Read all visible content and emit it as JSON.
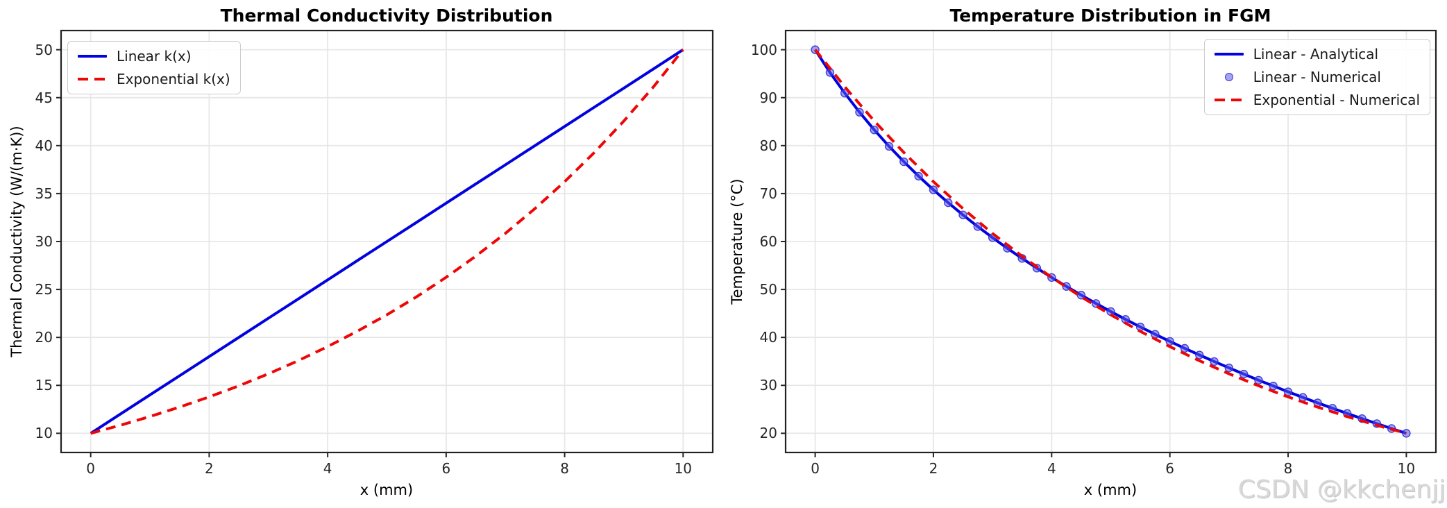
{
  "figure": {
    "background": "#ffffff"
  },
  "watermark": {
    "text": "CSDN @kkchenjj",
    "color": "#d8d8d8"
  },
  "colors": {
    "blue_line": "#0202e0",
    "red_line": "#ee0606",
    "marker_fill": "rgba(90,90,235,0.55)",
    "marker_edge": "rgba(40,40,210,0.85)",
    "grid": "#e7e7e7",
    "frame": "#222222",
    "tick": "#262626"
  },
  "chart_data": [
    {
      "type": "line",
      "title": "Thermal Conductivity Distribution",
      "xlabel": "x (mm)",
      "ylabel": "Thermal Conductivity (W/(m·K))",
      "xlim": [
        -0.5,
        10.5
      ],
      "ylim": [
        8,
        52
      ],
      "xticks": [
        0,
        2,
        4,
        6,
        8,
        10
      ],
      "yticks": [
        10,
        15,
        20,
        25,
        30,
        35,
        40,
        45,
        50
      ],
      "grid": true,
      "legend_position": "upper-left",
      "series": [
        {
          "name": "Linear k(x)",
          "style": "solid",
          "color": "#0202e0",
          "x": [
            0,
            0.5,
            1,
            1.5,
            2,
            2.5,
            3,
            3.5,
            4,
            4.5,
            5,
            5.5,
            6,
            6.5,
            7,
            7.5,
            8,
            8.5,
            9,
            9.5,
            10
          ],
          "y": [
            10,
            12,
            14,
            16,
            18,
            20,
            22,
            24,
            26,
            28,
            30,
            32,
            34,
            36,
            38,
            40,
            42,
            44,
            46,
            48,
            50
          ]
        },
        {
          "name": "Exponential k(x)",
          "style": "dashed",
          "color": "#ee0606",
          "x": [
            0,
            0.5,
            1,
            1.5,
            2,
            2.5,
            3,
            3.5,
            4,
            4.5,
            5,
            5.5,
            6,
            6.5,
            7,
            7.5,
            8,
            8.5,
            9,
            9.5,
            10
          ],
          "y": [
            10.0,
            10.84,
            11.75,
            12.73,
            13.8,
            14.95,
            16.21,
            17.57,
            19.04,
            20.64,
            22.36,
            24.23,
            26.27,
            28.47,
            30.85,
            33.44,
            36.24,
            39.28,
            42.57,
            46.13,
            50.0
          ]
        }
      ]
    },
    {
      "type": "line",
      "title": "Temperature Distribution in FGM",
      "xlabel": "x (mm)",
      "ylabel": "Temperature (°C)",
      "xlim": [
        -0.5,
        10.5
      ],
      "ylim": [
        16,
        104
      ],
      "xticks": [
        0,
        2,
        4,
        6,
        8,
        10
      ],
      "yticks": [
        20,
        30,
        40,
        50,
        60,
        70,
        80,
        90,
        100
      ],
      "grid": true,
      "legend_position": "upper-right",
      "series": [
        {
          "name": "Linear - Analytical",
          "style": "solid",
          "color": "#0202e0",
          "x": [
            0,
            0.25,
            0.5,
            0.75,
            1,
            1.25,
            1.5,
            1.75,
            2,
            2.25,
            2.5,
            2.75,
            3,
            3.25,
            3.5,
            3.75,
            4,
            4.25,
            4.5,
            4.75,
            5,
            5.25,
            5.5,
            5.75,
            6,
            6.25,
            6.5,
            6.75,
            7,
            7.25,
            7.5,
            7.75,
            8,
            8.25,
            8.5,
            8.75,
            9,
            9.25,
            9.5,
            9.75,
            10
          ],
          "y": [
            100,
            95.26,
            90.94,
            86.96,
            83.27,
            79.85,
            76.64,
            73.62,
            70.78,
            68.09,
            65.55,
            63.12,
            60.81,
            58.6,
            56.48,
            54.45,
            52.5,
            50.63,
            48.82,
            47.07,
            45.39,
            43.76,
            42.18,
            40.65,
            39.17,
            37.73,
            36.33,
            34.97,
            33.64,
            32.35,
            31.08,
            29.86,
            28.66,
            27.49,
            26.35,
            25.23,
            24.14,
            23.07,
            22.02,
            21.0,
            20.0
          ]
        },
        {
          "name": "Linear - Numerical",
          "style": "markers",
          "color": "#5a5aeb",
          "x": [
            0,
            0.25,
            0.5,
            0.75,
            1,
            1.25,
            1.5,
            1.75,
            2,
            2.25,
            2.5,
            2.75,
            3,
            3.25,
            3.5,
            3.75,
            4,
            4.25,
            4.5,
            4.75,
            5,
            5.25,
            5.5,
            5.75,
            6,
            6.25,
            6.5,
            6.75,
            7,
            7.25,
            7.5,
            7.75,
            8,
            8.25,
            8.5,
            8.75,
            9,
            9.25,
            9.5,
            9.75,
            10
          ],
          "y": [
            100,
            95.26,
            90.94,
            86.96,
            83.27,
            79.85,
            76.64,
            73.62,
            70.78,
            68.09,
            65.55,
            63.12,
            60.81,
            58.6,
            56.48,
            54.45,
            52.5,
            50.63,
            48.82,
            47.07,
            45.39,
            43.76,
            42.18,
            40.65,
            39.17,
            37.73,
            36.33,
            34.97,
            33.64,
            32.35,
            31.08,
            29.86,
            28.66,
            27.49,
            26.35,
            25.23,
            24.14,
            23.07,
            22.02,
            21.0,
            20.0
          ]
        },
        {
          "name": "Exponential - Numerical",
          "style": "dashed",
          "color": "#ee0606",
          "x": [
            0,
            0.5,
            1,
            1.5,
            2,
            2.5,
            3,
            3.5,
            4,
            4.5,
            5,
            5.5,
            6,
            6.5,
            7,
            7.5,
            8,
            8.5,
            9,
            9.5,
            10
          ],
          "y": [
            100,
            92.27,
            85.13,
            78.55,
            72.48,
            66.87,
            61.7,
            56.93,
            52.53,
            48.47,
            44.72,
            41.26,
            38.07,
            35.13,
            32.41,
            29.91,
            27.59,
            25.46,
            23.49,
            21.68,
            20.0
          ]
        }
      ]
    }
  ]
}
